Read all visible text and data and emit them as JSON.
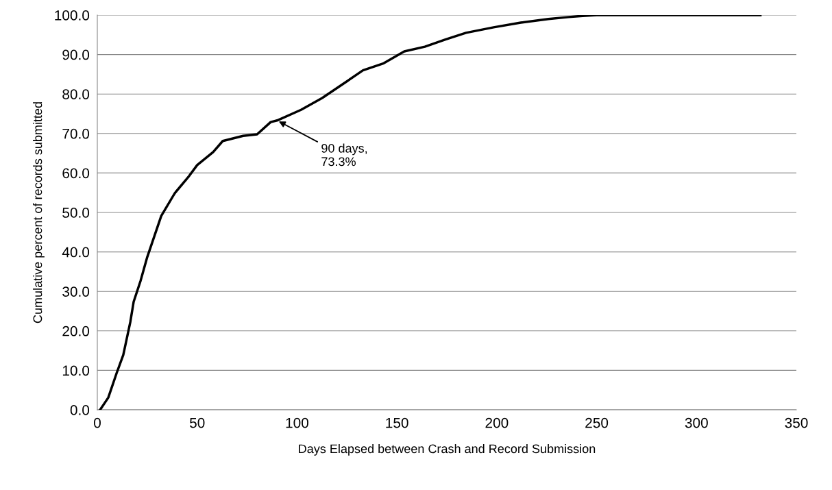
{
  "chart_data": {
    "type": "line",
    "xlabel": "Days Elapsed between Crash and Record Submission",
    "ylabel": "Cumulative percent of records submitted",
    "series": [
      {
        "color": "#000000",
        "x": [
          1.4,
          5.5,
          9.6,
          13,
          16.5,
          18.2,
          21.6,
          25,
          28.5,
          32,
          38.8,
          45.6,
          50,
          58,
          62.8,
          73,
          80,
          86.8,
          90,
          102,
          112.6,
          122.9,
          133,
          143.4,
          153.7,
          164,
          174.3,
          184.6,
          198.4,
          212,
          225.8,
          236,
          243,
          250,
          332
        ],
        "values": [
          0,
          3.1,
          9.2,
          13.9,
          22.2,
          27.4,
          32.6,
          38.7,
          43.9,
          49.1,
          54.9,
          59.0,
          62,
          65.3,
          68.1,
          69.4,
          69.8,
          72.9,
          73.3,
          76,
          79,
          82.5,
          86,
          87.8,
          90.8,
          92,
          93.8,
          95.5,
          96.9,
          98.1,
          99,
          99.5,
          99.8,
          100,
          100
        ]
      }
    ],
    "xlim": [
      0,
      350
    ],
    "xticks": [
      0,
      50,
      100,
      150,
      200,
      250,
      300,
      350
    ],
    "ylim": [
      0,
      100
    ],
    "yticks": [
      {
        "value": 0,
        "label": "0.0"
      },
      {
        "value": 10,
        "label": "10.0"
      },
      {
        "value": 20,
        "label": "20.0"
      },
      {
        "value": 30,
        "label": "30.0"
      },
      {
        "value": 40,
        "label": "40.0"
      },
      {
        "value": 50,
        "label": "50.0"
      },
      {
        "value": 60,
        "label": "60.0"
      },
      {
        "value": 70,
        "label": "70.0"
      },
      {
        "value": 80,
        "label": "80.0"
      },
      {
        "value": 90,
        "label": "90.0"
      },
      {
        "value": 100,
        "label": "100.0"
      }
    ],
    "grid": "y",
    "marker": "none",
    "line_style": "solid",
    "annotations": [
      {
        "text": "90 days,\n73.3%",
        "x": 90,
        "y": 73.3
      }
    ]
  }
}
